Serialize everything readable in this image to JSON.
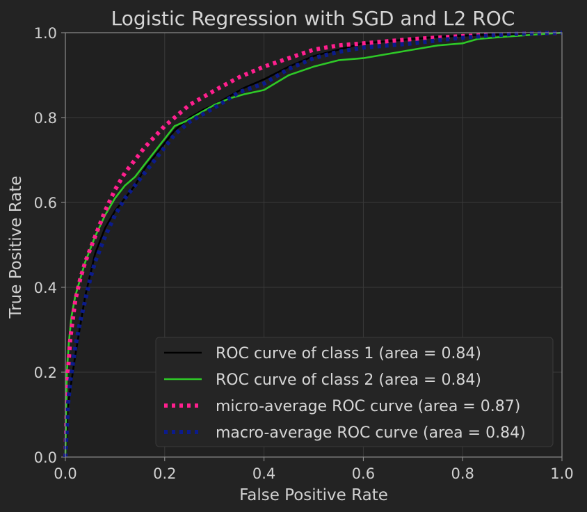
{
  "chart_data": {
    "type": "line",
    "title": "Logistic Regression with SGD and L2 ROC",
    "xlabel": "False Positive Rate",
    "ylabel": "True Positive Rate",
    "xlim": [
      0.0,
      1.0
    ],
    "ylim": [
      0.0,
      1.0
    ],
    "xticks": [
      "0.0",
      "0.2",
      "0.4",
      "0.6",
      "0.8",
      "1.0"
    ],
    "yticks": [
      "0.0",
      "0.2",
      "0.4",
      "0.6",
      "0.8",
      "1.0"
    ],
    "grid": true,
    "legend_position": "lower-right",
    "series": [
      {
        "name": "ROC curve of class 1 (area = 0.84)",
        "color": "#000000",
        "style": "solid",
        "x": [
          0.0,
          0.005,
          0.01,
          0.015,
          0.02,
          0.03,
          0.04,
          0.05,
          0.06,
          0.08,
          0.1,
          0.12,
          0.14,
          0.16,
          0.18,
          0.2,
          0.22,
          0.25,
          0.28,
          0.3,
          0.33,
          0.36,
          0.4,
          0.45,
          0.5,
          0.55,
          0.6,
          0.65,
          0.7,
          0.75,
          0.8,
          0.85,
          0.9,
          0.95,
          1.0
        ],
        "y": [
          0.0,
          0.12,
          0.16,
          0.2,
          0.24,
          0.31,
          0.38,
          0.43,
          0.48,
          0.54,
          0.58,
          0.61,
          0.64,
          0.68,
          0.71,
          0.74,
          0.77,
          0.8,
          0.82,
          0.83,
          0.85,
          0.87,
          0.89,
          0.92,
          0.945,
          0.96,
          0.975,
          0.98,
          0.985,
          0.99,
          0.993,
          0.995,
          0.997,
          0.999,
          1.0
        ]
      },
      {
        "name": "ROC curve of class 2 (area = 0.84)",
        "color": "#2ec927",
        "style": "solid",
        "x": [
          0.0,
          0.003,
          0.007,
          0.012,
          0.02,
          0.03,
          0.04,
          0.05,
          0.06,
          0.08,
          0.1,
          0.12,
          0.14,
          0.16,
          0.18,
          0.2,
          0.22,
          0.24,
          0.27,
          0.3,
          0.33,
          0.36,
          0.4,
          0.45,
          0.5,
          0.55,
          0.6,
          0.65,
          0.7,
          0.75,
          0.8,
          0.83,
          0.88,
          0.94,
          1.0
        ],
        "y": [
          0.0,
          0.2,
          0.27,
          0.33,
          0.38,
          0.42,
          0.46,
          0.49,
          0.52,
          0.57,
          0.61,
          0.64,
          0.66,
          0.69,
          0.72,
          0.75,
          0.78,
          0.79,
          0.81,
          0.83,
          0.845,
          0.855,
          0.865,
          0.9,
          0.92,
          0.935,
          0.94,
          0.95,
          0.96,
          0.97,
          0.975,
          0.985,
          0.99,
          0.995,
          1.0
        ]
      },
      {
        "name": "micro-average ROC curve (area = 0.87)",
        "color": "#ff1f8e",
        "style": "dotted",
        "x": [
          0.0,
          0.005,
          0.01,
          0.02,
          0.03,
          0.04,
          0.05,
          0.06,
          0.08,
          0.1,
          0.12,
          0.14,
          0.16,
          0.18,
          0.2,
          0.22,
          0.25,
          0.28,
          0.31,
          0.35,
          0.4,
          0.45,
          0.5,
          0.55,
          0.6,
          0.7,
          0.8,
          0.9,
          1.0
        ],
        "y": [
          0.0,
          0.2,
          0.28,
          0.37,
          0.42,
          0.46,
          0.49,
          0.52,
          0.58,
          0.63,
          0.67,
          0.7,
          0.73,
          0.755,
          0.78,
          0.8,
          0.83,
          0.85,
          0.87,
          0.895,
          0.92,
          0.94,
          0.96,
          0.97,
          0.975,
          0.985,
          0.992,
          0.997,
          1.0
        ]
      },
      {
        "name": "macro-average ROC curve (area = 0.84)",
        "color": "#0b1b8c",
        "style": "dotted",
        "x": [
          0.0,
          0.005,
          0.01,
          0.02,
          0.03,
          0.04,
          0.05,
          0.06,
          0.08,
          0.1,
          0.12,
          0.14,
          0.16,
          0.18,
          0.2,
          0.22,
          0.25,
          0.28,
          0.31,
          0.35,
          0.4,
          0.45,
          0.5,
          0.55,
          0.6,
          0.65,
          0.7,
          0.75,
          0.8,
          0.85,
          0.9,
          1.0
        ],
        "y": [
          0.0,
          0.12,
          0.18,
          0.26,
          0.32,
          0.37,
          0.42,
          0.46,
          0.52,
          0.57,
          0.61,
          0.64,
          0.67,
          0.7,
          0.73,
          0.76,
          0.79,
          0.81,
          0.83,
          0.86,
          0.88,
          0.915,
          0.94,
          0.955,
          0.965,
          0.97,
          0.975,
          0.982,
          0.988,
          0.993,
          0.997,
          1.0
        ]
      }
    ]
  }
}
